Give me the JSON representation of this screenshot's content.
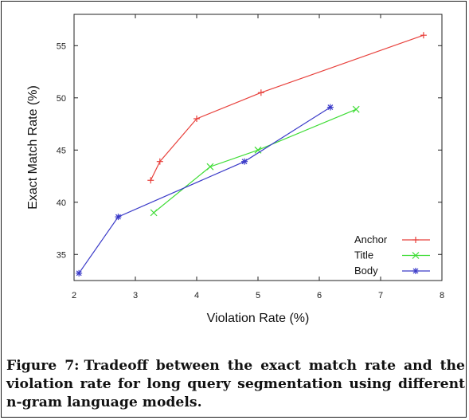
{
  "caption": {
    "label": "Figure 7:",
    "text": "Tradeoff between the exact match rate and the violation rate for long query segmentation using different n-gram language models."
  },
  "chart_data": {
    "type": "line",
    "title": "",
    "xlabel": "Violation Rate (%)",
    "ylabel": "Exact Match Rate (%)",
    "xlim": [
      2,
      8
    ],
    "ylim": [
      32.5,
      58
    ],
    "xticks": [
      2,
      3,
      4,
      5,
      6,
      7,
      8
    ],
    "yticks": [
      35,
      40,
      45,
      50,
      55
    ],
    "grid": false,
    "legend_position": "bottom-right",
    "series": [
      {
        "name": "Anchor",
        "color": "#e8413c",
        "marker": "plus",
        "points": [
          [
            3.25,
            42.1
          ],
          [
            3.4,
            43.9
          ],
          [
            4.0,
            48.0
          ],
          [
            5.05,
            50.5
          ],
          [
            7.7,
            56.0
          ]
        ]
      },
      {
        "name": "Title",
        "color": "#3ddc34",
        "marker": "cross",
        "points": [
          [
            3.3,
            39.0
          ],
          [
            4.22,
            43.4
          ],
          [
            5.0,
            45.0
          ],
          [
            6.6,
            48.9
          ]
        ]
      },
      {
        "name": "Body",
        "color": "#3a3ac8",
        "marker": "star",
        "points": [
          [
            2.08,
            33.2
          ],
          [
            2.72,
            38.6
          ],
          [
            4.78,
            43.9
          ],
          [
            6.18,
            49.1
          ]
        ]
      }
    ]
  }
}
